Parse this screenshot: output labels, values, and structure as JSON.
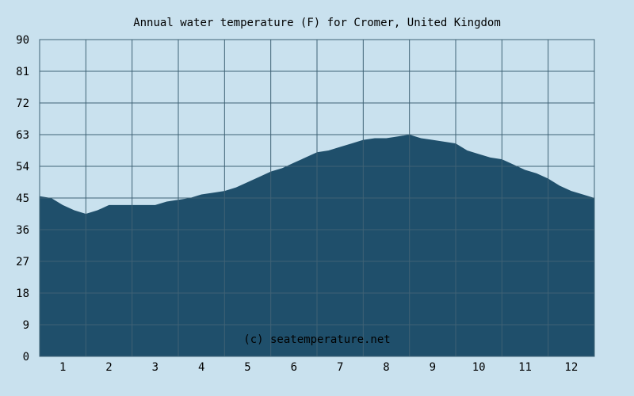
{
  "chart_data": {
    "type": "area",
    "title": "Annual water temperature (F) for Cromer, United Kingdom",
    "watermark": "(c) seatemperature.net",
    "xlabel": "",
    "ylabel": "",
    "ylim": [
      0,
      90
    ],
    "yticks": [
      0,
      9,
      18,
      27,
      36,
      45,
      54,
      63,
      72,
      81,
      90
    ],
    "xticks": [
      "1",
      "2",
      "3",
      "4",
      "5",
      "6",
      "7",
      "8",
      "9",
      "10",
      "11",
      "12"
    ],
    "xlim": [
      0.5,
      12.5
    ],
    "grid": true,
    "colors": {
      "background": "#c9e1ee",
      "fill": "#1f4f6b",
      "grid": "#3f6275"
    },
    "x": [
      0.5,
      0.75,
      1.0,
      1.25,
      1.5,
      1.75,
      2.0,
      2.25,
      2.5,
      2.75,
      3.0,
      3.25,
      3.5,
      3.75,
      4.0,
      4.25,
      4.5,
      4.75,
      5.0,
      5.25,
      5.5,
      5.75,
      6.0,
      6.25,
      6.5,
      6.75,
      7.0,
      7.25,
      7.5,
      7.75,
      8.0,
      8.25,
      8.5,
      8.75,
      9.0,
      9.25,
      9.5,
      9.75,
      10.0,
      10.25,
      10.5,
      10.75,
      11.0,
      11.25,
      11.5,
      11.75,
      12.0,
      12.25,
      12.5
    ],
    "values": [
      45.5,
      45.0,
      43.0,
      41.5,
      40.5,
      41.5,
      43.0,
      43.0,
      43.0,
      43.0,
      43.0,
      44.0,
      44.5,
      45.0,
      46.0,
      46.5,
      47.0,
      48.0,
      49.5,
      51.0,
      52.5,
      53.5,
      55.0,
      56.5,
      58.0,
      58.5,
      59.5,
      60.5,
      61.5,
      62.0,
      62.0,
      62.5,
      63.0,
      62.0,
      61.5,
      61.0,
      60.5,
      58.5,
      57.5,
      56.5,
      56.0,
      54.5,
      53.0,
      52.0,
      50.5,
      48.5,
      47.0,
      46.0,
      45.0
    ]
  }
}
